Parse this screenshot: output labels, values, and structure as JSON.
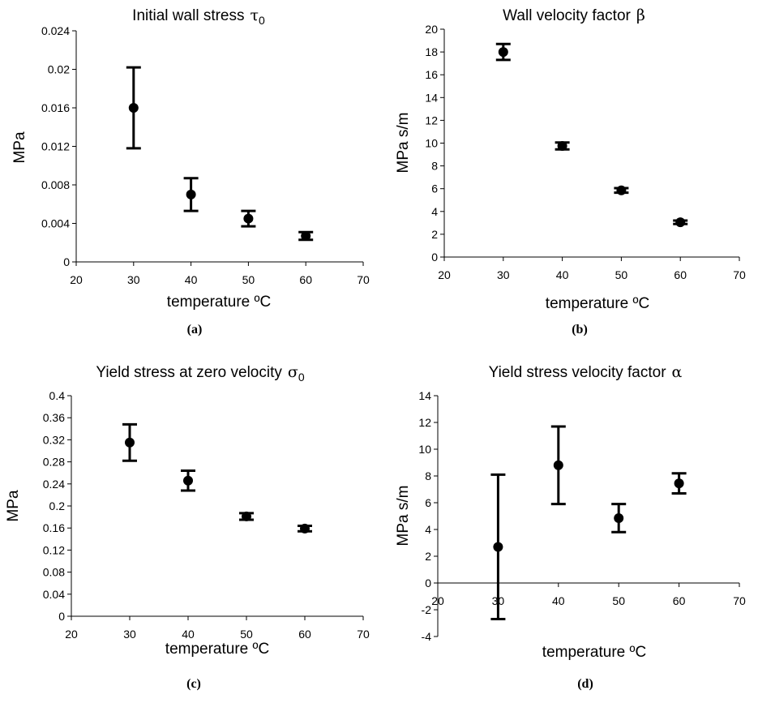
{
  "chart_data": [
    {
      "panel_label": "(a)",
      "type": "scatter",
      "title": "Initial wall stress",
      "title_symbol": "τ",
      "title_subscript": "0",
      "xlabel": "temperature ºC",
      "ylabel": "MPa",
      "xlim": [
        20,
        70
      ],
      "ylim": [
        0,
        0.024
      ],
      "xticks": [
        "20",
        "30",
        "40",
        "50",
        "60",
        "70"
      ],
      "yticks": [
        "0",
        "0.004",
        "0.008",
        "0.012",
        "0.016",
        "0.02",
        "0.024"
      ],
      "x": [
        30,
        40,
        50,
        60
      ],
      "y": [
        0.016,
        0.007,
        0.0045,
        0.0027
      ],
      "error_low": [
        0.0118,
        0.0053,
        0.0037,
        0.0023
      ],
      "error_high": [
        0.0202,
        0.0087,
        0.0053,
        0.0031
      ],
      "grid": false
    },
    {
      "panel_label": "(b)",
      "type": "scatter",
      "title": "Wall velocity factor",
      "title_symbol": "β",
      "title_subscript": "",
      "xlabel": "temperature ºC",
      "ylabel": "MPa s/m",
      "xlim": [
        20,
        70
      ],
      "ylim": [
        0,
        20
      ],
      "xticks": [
        "20",
        "30",
        "40",
        "50",
        "60",
        "70"
      ],
      "yticks": [
        "0",
        "2",
        "4",
        "6",
        "8",
        "10",
        "12",
        "14",
        "16",
        "18",
        "20"
      ],
      "x": [
        30,
        40,
        50,
        60
      ],
      "y": [
        18.0,
        9.75,
        5.85,
        3.05
      ],
      "error_low": [
        17.3,
        9.45,
        5.65,
        2.9
      ],
      "error_high": [
        18.7,
        10.05,
        6.05,
        3.2
      ],
      "grid": false
    },
    {
      "panel_label": "(c)",
      "type": "scatter",
      "title": "Yield stress at zero velocity",
      "title_symbol": "σ",
      "title_subscript": "0",
      "xlabel": "temperature ºC",
      "ylabel": "MPa",
      "xlim": [
        20,
        70
      ],
      "ylim": [
        0,
        0.4
      ],
      "xticks": [
        "20",
        "30",
        "40",
        "50",
        "60",
        "70"
      ],
      "yticks": [
        "0",
        "0.04",
        "0.08",
        "0.12",
        "0.16",
        "0.2",
        "0.24",
        "0.28",
        "0.32",
        "0.36",
        "0.4"
      ],
      "x": [
        30,
        40,
        50,
        60
      ],
      "y": [
        0.315,
        0.246,
        0.181,
        0.159
      ],
      "error_low": [
        0.282,
        0.228,
        0.175,
        0.154
      ],
      "error_high": [
        0.348,
        0.264,
        0.187,
        0.164
      ],
      "grid": false
    },
    {
      "panel_label": "(d)",
      "type": "scatter",
      "title": "Yield stress velocity factor",
      "title_symbol": "α",
      "title_subscript": "",
      "xlabel": "temperature ºC",
      "ylabel": "MPa s/m",
      "xlim": [
        20,
        70
      ],
      "ylim": [
        -4,
        14
      ],
      "xticks": [
        "20",
        "30",
        "40",
        "50",
        "60",
        "70"
      ],
      "yticks": [
        "-4",
        "-2",
        "0",
        "2",
        "4",
        "6",
        "8",
        "10",
        "12",
        "14"
      ],
      "x": [
        30,
        40,
        50,
        60
      ],
      "y": [
        2.7,
        8.8,
        4.85,
        7.45
      ],
      "error_low": [
        -2.7,
        5.9,
        3.8,
        6.7
      ],
      "error_high": [
        8.1,
        11.7,
        5.9,
        8.2
      ],
      "grid": false
    }
  ]
}
